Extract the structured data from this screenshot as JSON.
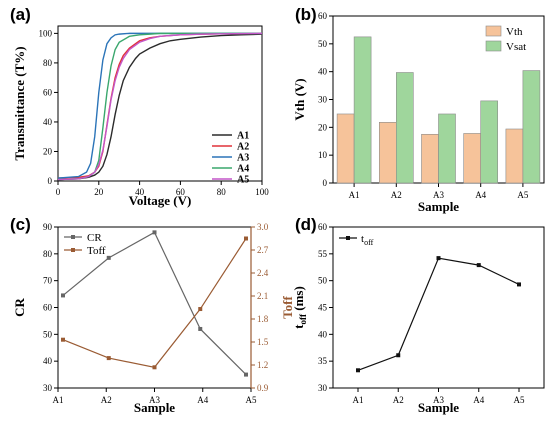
{
  "chart_data": [
    {
      "panel": "(a)",
      "type": "line",
      "xlabel": "Voltage (V)",
      "ylabel": "Transmittance (T%)",
      "xlim": [
        0,
        100
      ],
      "ylim": [
        0,
        105
      ],
      "xticks": [
        "0",
        "20",
        "40",
        "60",
        "80",
        "100"
      ],
      "yticks": [
        "0",
        "20",
        "40",
        "60",
        "80",
        "100"
      ],
      "legend_position": "bottom-right",
      "series": [
        {
          "name": "A1",
          "color": "#2b2b2b",
          "x": [
            0,
            10,
            15,
            18,
            20,
            22,
            24,
            26,
            28,
            30,
            32,
            35,
            38,
            40,
            45,
            50,
            55,
            60,
            70,
            80,
            90,
            100
          ],
          "y": [
            1,
            1.5,
            2.5,
            4,
            6,
            10,
            18,
            30,
            45,
            58,
            68,
            77,
            83,
            86,
            90,
            93,
            95,
            96,
            97.5,
            98.5,
            99,
            99.5
          ]
        },
        {
          "name": "A2",
          "color": "#e0323a",
          "x": [
            0,
            10,
            15,
            18,
            20,
            22,
            24,
            26,
            28,
            30,
            32,
            35,
            38,
            40,
            45,
            50,
            60,
            70,
            80,
            100
          ],
          "y": [
            2,
            2.5,
            3.5,
            6,
            10,
            20,
            38,
            56,
            70,
            79,
            85,
            90,
            93,
            95,
            97,
            98,
            99,
            99.5,
            99.7,
            100
          ]
        },
        {
          "name": "A3",
          "color": "#2b74b8",
          "x": [
            0,
            10,
            14,
            16,
            18,
            20,
            22,
            24,
            26,
            28,
            30,
            35,
            40,
            50,
            60,
            80,
            100
          ],
          "y": [
            2,
            3,
            6,
            12,
            30,
            60,
            82,
            93,
            97,
            99,
            99.5,
            100,
            100,
            100,
            100,
            100,
            100
          ]
        },
        {
          "name": "A4",
          "color": "#3aa76d",
          "x": [
            0,
            10,
            15,
            18,
            20,
            22,
            24,
            26,
            28,
            30,
            35,
            40,
            45,
            50,
            60,
            80,
            100
          ],
          "y": [
            1,
            1.5,
            3,
            6,
            14,
            36,
            60,
            78,
            89,
            94,
            98,
            99,
            99.5,
            100,
            100,
            100,
            100
          ]
        },
        {
          "name": "A5",
          "color": "#c357c9",
          "x": [
            0,
            10,
            15,
            18,
            20,
            22,
            24,
            26,
            28,
            30,
            32,
            35,
            38,
            40,
            45,
            50,
            60,
            70,
            80,
            100
          ],
          "y": [
            1,
            1.5,
            3,
            6,
            11,
            21,
            37,
            55,
            68,
            77,
            83,
            89,
            92,
            94,
            96.5,
            98,
            99,
            99.5,
            99.7,
            100
          ]
        }
      ]
    },
    {
      "panel": "(b)",
      "type": "bar",
      "xlabel": "Sample",
      "ylabel": "Vth (V)",
      "ylim": [
        0,
        60
      ],
      "yticks": [
        "0",
        "10",
        "20",
        "30",
        "40",
        "50",
        "60"
      ],
      "categories": [
        "A1",
        "A2",
        "A3",
        "A4",
        "A5"
      ],
      "legend_position": "top-right",
      "series": [
        {
          "name": "Vth",
          "color": "#f6c39a",
          "values": [
            24.8,
            21.8,
            17.5,
            17.8,
            19.4
          ]
        },
        {
          "name": "Vsat",
          "color": "#9fd69c",
          "values": [
            52.5,
            39.7,
            24.8,
            29.5,
            40.4
          ]
        }
      ]
    },
    {
      "panel": "(c)",
      "type": "line",
      "xlabel": "Sample",
      "ylabel": "CR",
      "ylabel_right": "Toff",
      "categories": [
        "A1",
        "A2",
        "A3",
        "A4",
        "A5"
      ],
      "ylim": [
        30,
        90
      ],
      "ylim_right": [
        0.9,
        3.0
      ],
      "yticks": [
        "30",
        "40",
        "50",
        "60",
        "70",
        "80",
        "90"
      ],
      "yticks_right": [
        "0.9",
        "1.2",
        "1.5",
        "1.8",
        "2.1",
        "2.4",
        "2.7",
        "3.0"
      ],
      "legend_position": "top-left",
      "series": [
        {
          "name": "CR",
          "axis": "left",
          "color": "#666666",
          "values": [
            64.5,
            78.5,
            88.0,
            52.0,
            35.0
          ]
        },
        {
          "name": "Toff",
          "axis": "right",
          "color": "#9a5b33",
          "values": [
            1.53,
            1.29,
            1.17,
            1.93,
            2.85
          ]
        }
      ]
    },
    {
      "panel": "(d)",
      "type": "line",
      "xlabel": "Sample",
      "ylabel": "t",
      "ylabel_sub": "off",
      "ylabel_unit": " (ms)",
      "categories": [
        "A1",
        "A2",
        "A3",
        "A4",
        "A5"
      ],
      "ylim": [
        30,
        60
      ],
      "yticks": [
        "30",
        "35",
        "40",
        "45",
        "50",
        "55",
        "60"
      ],
      "legend_position": "top-left",
      "series": [
        {
          "name": "t",
          "name_sub": "off",
          "color": "#111111",
          "values": [
            33.3,
            36.1,
            54.2,
            52.9,
            49.3
          ]
        }
      ]
    }
  ]
}
